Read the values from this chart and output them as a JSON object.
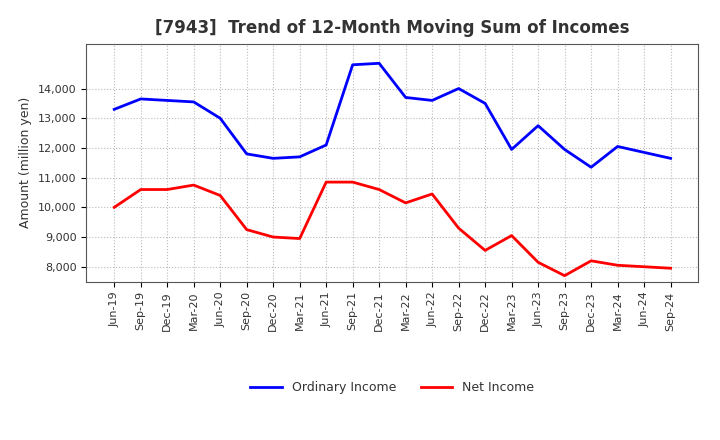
{
  "title": "[7943]  Trend of 12-Month Moving Sum of Incomes",
  "ylabel": "Amount (million yen)",
  "background_color": "#ffffff",
  "grid_color": "#bbbbbb",
  "xlabels": [
    "Jun-19",
    "Sep-19",
    "Dec-19",
    "Mar-20",
    "Jun-20",
    "Sep-20",
    "Dec-20",
    "Mar-21",
    "Jun-21",
    "Sep-21",
    "Dec-21",
    "Mar-22",
    "Jun-22",
    "Sep-22",
    "Dec-22",
    "Mar-23",
    "Jun-23",
    "Sep-23",
    "Dec-23",
    "Mar-24",
    "Jun-24",
    "Sep-24"
  ],
  "ordinary_income": [
    13300,
    13650,
    13600,
    13550,
    13000,
    11800,
    11650,
    11700,
    12100,
    14800,
    14850,
    13700,
    13600,
    14000,
    13500,
    11950,
    12750,
    11950,
    11350,
    12050,
    11850,
    11650
  ],
  "net_income": [
    10000,
    10600,
    10600,
    10750,
    10400,
    9250,
    9000,
    8950,
    10850,
    10850,
    10600,
    10150,
    10450,
    9300,
    8550,
    9050,
    8150,
    7700,
    8200,
    8050,
    8000,
    7950
  ],
  "ordinary_color": "#0000ff",
  "net_color": "#ff0000",
  "ylim_min": 7500,
  "ylim_max": 15500,
  "yticks": [
    8000,
    9000,
    10000,
    11000,
    12000,
    13000,
    14000
  ],
  "line_width": 2.0,
  "title_color": "#333333",
  "title_fontsize": 12,
  "tick_fontsize": 8,
  "ylabel_fontsize": 9,
  "legend_fontsize": 9
}
